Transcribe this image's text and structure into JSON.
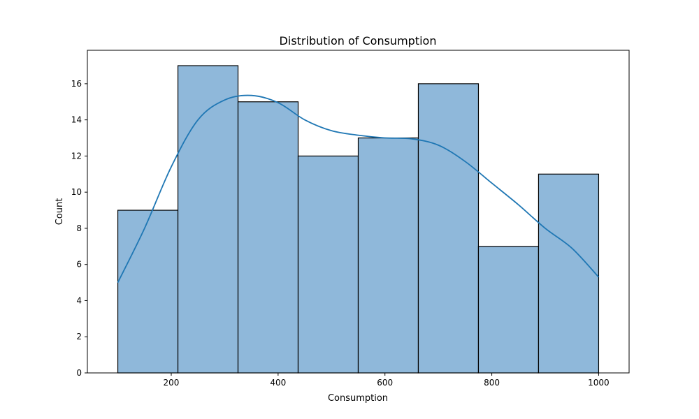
{
  "chart_data": {
    "type": "bar",
    "subtype": "histogram-with-kde",
    "title": "Distribution of Consumption",
    "xlabel": "Consumption",
    "ylabel": "Count",
    "xlim": [
      43,
      1057
    ],
    "ylim": [
      0,
      17.85
    ],
    "xticks": [
      200,
      400,
      600,
      800,
      1000
    ],
    "yticks": [
      0,
      2,
      4,
      6,
      8,
      10,
      12,
      14,
      16
    ],
    "bin_edges": [
      100,
      212.5,
      325,
      437.5,
      550,
      662.5,
      775,
      887.5,
      1000
    ],
    "values": [
      9,
      17,
      15,
      12,
      13,
      16,
      7,
      11
    ],
    "kde": {
      "x": [
        100,
        150,
        200,
        250,
        300,
        350,
        400,
        450,
        500,
        550,
        600,
        650,
        700,
        750,
        800,
        850,
        900,
        950,
        1000
      ],
      "y": [
        5.0,
        8.0,
        11.4,
        14.0,
        15.1,
        15.35,
        14.95,
        14.0,
        13.4,
        13.15,
        13.0,
        12.95,
        12.6,
        11.7,
        10.5,
        9.3,
        8.0,
        6.9,
        5.3
      ]
    },
    "grid": false,
    "legend": "none",
    "colors": {
      "bar_fill": "#8fb8da",
      "bar_edge": "#000000",
      "kde_line": "#1f77b4"
    }
  }
}
